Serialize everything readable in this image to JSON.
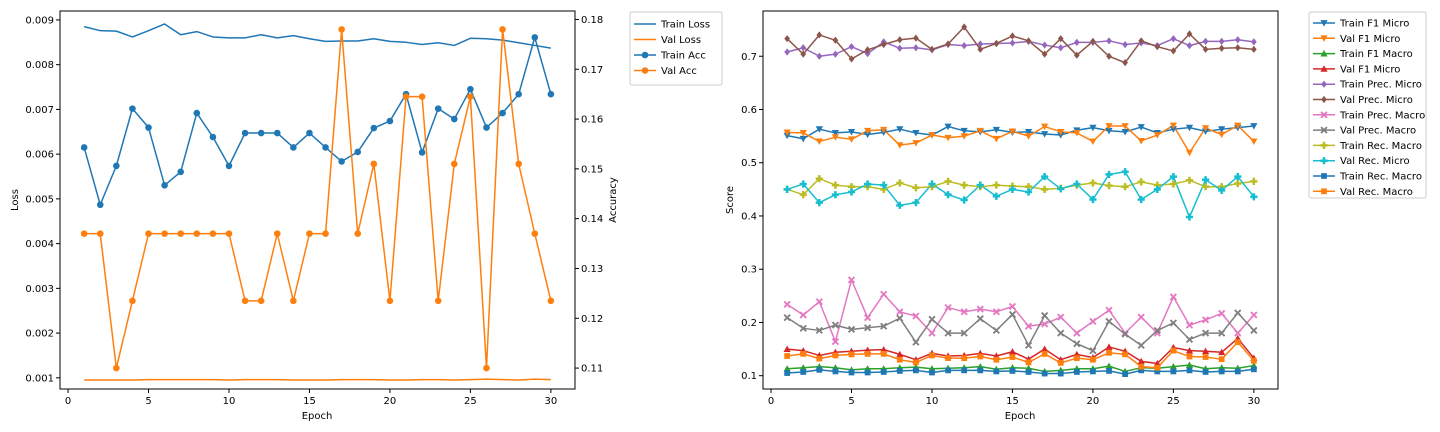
{
  "colors": {
    "blue": "#1f77b4",
    "orange": "#ff7f0e",
    "green": "#2ca02c",
    "red": "#d62728",
    "purple": "#9467bd",
    "brown": "#8c564b",
    "pink": "#e377c2",
    "gray": "#7f7f7f",
    "olive": "#bcbd22",
    "cyan": "#17becf"
  },
  "chart_data": [
    {
      "type": "line",
      "title": "",
      "xlabel": "Epoch",
      "ylabel": "Loss",
      "y2label": "Accuracy",
      "xlim": [
        -0.5,
        31.5
      ],
      "ylim": [
        0.00075,
        0.0092
      ],
      "y2lim": [
        0.1058,
        0.1817
      ],
      "xticks": [
        0,
        5,
        10,
        15,
        20,
        25,
        30
      ],
      "yticks": [
        0.001,
        0.002,
        0.003,
        0.004,
        0.005,
        0.006,
        0.007,
        0.008,
        0.009
      ],
      "ytick_labels": [
        "0.001",
        "0.002",
        "0.003",
        "0.004",
        "0.005",
        "0.006",
        "0.007",
        "0.008",
        "0.009"
      ],
      "y2ticks": [
        0.11,
        0.12,
        0.13,
        0.14,
        0.15,
        0.16,
        0.17,
        0.18
      ],
      "y2tick_labels": [
        "0.11",
        "0.12",
        "0.13",
        "0.14",
        "0.15",
        "0.16",
        "0.17",
        "0.18"
      ],
      "grid": false,
      "legend_position": "outside-right",
      "x": [
        1,
        2,
        3,
        4,
        5,
        6,
        7,
        8,
        9,
        10,
        11,
        12,
        13,
        14,
        15,
        16,
        17,
        18,
        19,
        20,
        21,
        22,
        23,
        24,
        25,
        26,
        27,
        28,
        29,
        30
      ],
      "series": [
        {
          "name": "Train Loss",
          "axis": "left",
          "color": "#1f77b4",
          "marker": "none",
          "values": [
            0.00885,
            0.00876,
            0.00875,
            0.00862,
            0.00876,
            0.00891,
            0.00867,
            0.00874,
            0.00862,
            0.0086,
            0.0086,
            0.00867,
            0.0086,
            0.00865,
            0.00858,
            0.00852,
            0.00853,
            0.00853,
            0.00858,
            0.00852,
            0.0085,
            0.00845,
            0.00849,
            0.00843,
            0.00859,
            0.00858,
            0.00855,
            0.00849,
            0.00843,
            0.00837
          ]
        },
        {
          "name": "Val Loss",
          "axis": "left",
          "color": "#ff7f0e",
          "marker": "none",
          "values": [
            0.00095,
            0.00095,
            0.00095,
            0.00095,
            0.00096,
            0.00096,
            0.00096,
            0.00096,
            0.00096,
            0.00095,
            0.00096,
            0.00096,
            0.00096,
            0.00095,
            0.00095,
            0.00095,
            0.00096,
            0.00096,
            0.00096,
            0.00095,
            0.00095,
            0.00096,
            0.00096,
            0.00095,
            0.00096,
            0.00097,
            0.00096,
            0.00095,
            0.00097,
            0.00096
          ]
        },
        {
          "name": "Train Acc",
          "axis": "right",
          "color": "#1f77b4",
          "marker": "o",
          "values": [
            0.1543,
            0.1428,
            0.1506,
            0.1621,
            0.1583,
            0.1467,
            0.1494,
            0.1612,
            0.1564,
            0.1506,
            0.1572,
            0.1572,
            0.1572,
            0.1543,
            0.1572,
            0.1543,
            0.1515,
            0.1534,
            0.1582,
            0.1596,
            0.165,
            0.1533,
            0.1621,
            0.16,
            0.166,
            0.1583,
            0.1612,
            0.165,
            0.1764,
            0.165
          ]
        },
        {
          "name": "Val Acc",
          "axis": "right",
          "color": "#ff7f0e",
          "marker": "o",
          "values": [
            0.137,
            0.137,
            0.11,
            0.1235,
            0.137,
            0.137,
            0.137,
            0.137,
            0.137,
            0.137,
            0.1235,
            0.1235,
            0.137,
            0.1235,
            0.137,
            0.137,
            0.178,
            0.137,
            0.151,
            0.1235,
            0.1645,
            0.1645,
            0.1235,
            0.151,
            0.1645,
            0.11,
            0.178,
            0.151,
            0.137,
            0.1235
          ]
        }
      ]
    },
    {
      "type": "line",
      "title": "",
      "xlabel": "Epoch",
      "ylabel": "Score",
      "xlim": [
        -0.5,
        31.5
      ],
      "ylim": [
        0.075,
        0.785
      ],
      "xticks": [
        0,
        5,
        10,
        15,
        20,
        25,
        30
      ],
      "yticks": [
        0.1,
        0.2,
        0.3,
        0.4,
        0.5,
        0.6,
        0.7
      ],
      "ytick_labels": [
        "0.1",
        "0.2",
        "0.3",
        "0.4",
        "0.5",
        "0.6",
        "0.7"
      ],
      "grid": false,
      "legend_position": "outside-right",
      "x": [
        1,
        2,
        3,
        4,
        5,
        6,
        7,
        8,
        9,
        10,
        11,
        12,
        13,
        14,
        15,
        16,
        17,
        18,
        19,
        20,
        21,
        22,
        23,
        24,
        25,
        26,
        27,
        28,
        29,
        30
      ],
      "series": [
        {
          "name": "Train F1 Micro",
          "color": "#1f77b4",
          "marker": "v",
          "values": [
            0.551,
            0.545,
            0.563,
            0.556,
            0.558,
            0.553,
            0.557,
            0.563,
            0.556,
            0.552,
            0.568,
            0.56,
            0.558,
            0.562,
            0.557,
            0.558,
            0.554,
            0.552,
            0.561,
            0.566,
            0.56,
            0.558,
            0.567,
            0.556,
            0.563,
            0.566,
            0.559,
            0.563,
            0.566,
            0.569
          ]
        },
        {
          "name": "Val F1 Micro",
          "color": "#ff7f0e",
          "marker": "v",
          "values": [
            0.557,
            0.556,
            0.54,
            0.548,
            0.544,
            0.56,
            0.562,
            0.533,
            0.537,
            0.552,
            0.547,
            0.55,
            0.56,
            0.545,
            0.559,
            0.55,
            0.568,
            0.558,
            0.556,
            0.54,
            0.569,
            0.569,
            0.541,
            0.552,
            0.57,
            0.519,
            0.565,
            0.553,
            0.57,
            0.54
          ]
        },
        {
          "name": "Train F1 Macro",
          "color": "#2ca02c",
          "marker": "^",
          "values": [
            0.113,
            0.115,
            0.117,
            0.115,
            0.111,
            0.113,
            0.113,
            0.115,
            0.116,
            0.113,
            0.114,
            0.115,
            0.117,
            0.112,
            0.115,
            0.114,
            0.108,
            0.11,
            0.113,
            0.113,
            0.118,
            0.108,
            0.115,
            0.114,
            0.117,
            0.12,
            0.113,
            0.115,
            0.114,
            0.119
          ]
        },
        {
          "name": "Val F1 Micro",
          "color": "#d62728",
          "marker": "^",
          "values": [
            0.15,
            0.147,
            0.138,
            0.144,
            0.146,
            0.148,
            0.149,
            0.14,
            0.13,
            0.142,
            0.137,
            0.138,
            0.142,
            0.137,
            0.145,
            0.131,
            0.15,
            0.13,
            0.14,
            0.134,
            0.154,
            0.146,
            0.127,
            0.123,
            0.153,
            0.147,
            0.146,
            0.144,
            0.17,
            0.133
          ]
        },
        {
          "name": "Train Prec. Micro",
          "color": "#9467bd",
          "marker": "D",
          "values": [
            0.708,
            0.716,
            0.7,
            0.704,
            0.718,
            0.705,
            0.727,
            0.715,
            0.716,
            0.712,
            0.722,
            0.72,
            0.723,
            0.724,
            0.725,
            0.728,
            0.721,
            0.716,
            0.726,
            0.726,
            0.729,
            0.722,
            0.725,
            0.72,
            0.733,
            0.72,
            0.728,
            0.728,
            0.731,
            0.727
          ]
        },
        {
          "name": "Val Prec. Micro",
          "color": "#8c564b",
          "marker": "D",
          "values": [
            0.733,
            0.704,
            0.74,
            0.73,
            0.695,
            0.712,
            0.722,
            0.731,
            0.734,
            0.713,
            0.723,
            0.755,
            0.713,
            0.724,
            0.738,
            0.729,
            0.704,
            0.733,
            0.702,
            0.728,
            0.7,
            0.688,
            0.729,
            0.718,
            0.71,
            0.742,
            0.713,
            0.715,
            0.716,
            0.713
          ]
        },
        {
          "name": "Train Prec. Macro",
          "color": "#e377c2",
          "marker": "X",
          "values": [
            0.234,
            0.214,
            0.239,
            0.164,
            0.28,
            0.209,
            0.253,
            0.22,
            0.212,
            0.18,
            0.228,
            0.22,
            0.225,
            0.22,
            0.23,
            0.193,
            0.197,
            0.21,
            0.18,
            0.202,
            0.223,
            0.18,
            0.21,
            0.18,
            0.248,
            0.195,
            0.205,
            0.217,
            0.18,
            0.214
          ]
        },
        {
          "name": "Val Prec. Macro",
          "color": "#7f7f7f",
          "marker": "X",
          "values": [
            0.209,
            0.189,
            0.185,
            0.195,
            0.187,
            0.19,
            0.193,
            0.208,
            0.163,
            0.206,
            0.18,
            0.18,
            0.207,
            0.185,
            0.215,
            0.157,
            0.213,
            0.18,
            0.16,
            0.147,
            0.202,
            0.178,
            0.157,
            0.185,
            0.199,
            0.168,
            0.18,
            0.18,
            0.218,
            0.185
          ]
        },
        {
          "name": "Train Rec. Macro",
          "color": "#bcbd22",
          "marker": "P",
          "values": [
            0.45,
            0.44,
            0.47,
            0.458,
            0.455,
            0.455,
            0.45,
            0.462,
            0.453,
            0.455,
            0.465,
            0.458,
            0.455,
            0.458,
            0.456,
            0.455,
            0.45,
            0.452,
            0.458,
            0.462,
            0.457,
            0.455,
            0.464,
            0.458,
            0.46,
            0.467,
            0.455,
            0.455,
            0.461,
            0.465
          ]
        },
        {
          "name": "Val Rec. Micro",
          "color": "#17becf",
          "marker": "P",
          "values": [
            0.45,
            0.46,
            0.425,
            0.44,
            0.445,
            0.46,
            0.458,
            0.42,
            0.425,
            0.46,
            0.44,
            0.43,
            0.458,
            0.437,
            0.45,
            0.445,
            0.474,
            0.451,
            0.46,
            0.431,
            0.478,
            0.483,
            0.431,
            0.45,
            0.474,
            0.398,
            0.468,
            0.448,
            0.474,
            0.436
          ]
        },
        {
          "name": "Train Rec. Macro",
          "color": "#1f77b4",
          "marker": "s",
          "values": [
            0.105,
            0.107,
            0.111,
            0.108,
            0.106,
            0.106,
            0.107,
            0.109,
            0.11,
            0.106,
            0.11,
            0.11,
            0.11,
            0.108,
            0.109,
            0.107,
            0.104,
            0.104,
            0.107,
            0.108,
            0.109,
            0.103,
            0.11,
            0.108,
            0.108,
            0.11,
            0.107,
            0.108,
            0.108,
            0.112
          ]
        },
        {
          "name": "Val Rec. Macro",
          "color": "#ff7f0e",
          "marker": "s",
          "values": [
            0.137,
            0.141,
            0.132,
            0.138,
            0.14,
            0.141,
            0.141,
            0.13,
            0.125,
            0.138,
            0.133,
            0.133,
            0.136,
            0.13,
            0.135,
            0.125,
            0.141,
            0.124,
            0.133,
            0.13,
            0.143,
            0.14,
            0.117,
            0.115,
            0.147,
            0.136,
            0.135,
            0.131,
            0.163,
            0.128
          ]
        }
      ]
    }
  ]
}
